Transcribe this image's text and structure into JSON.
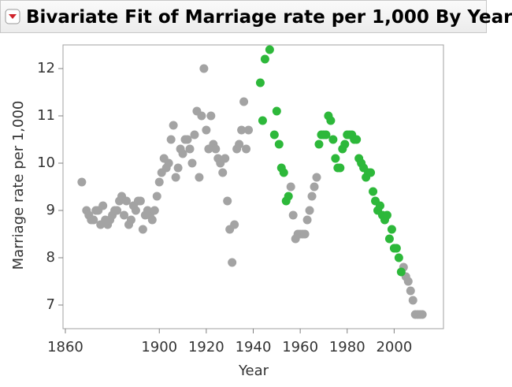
{
  "header": {
    "title": "Bivariate Fit of Marriage rate per 1,000 By Year"
  },
  "chart_data": {
    "type": "scatter",
    "xlabel": "Year",
    "ylabel": "Marriage rate per 1,000",
    "xlim": [
      1859,
      2021
    ],
    "ylim": [
      6.5,
      12.5
    ],
    "xticks": [
      1860,
      1900,
      1920,
      1940,
      1960,
      1980,
      2000
    ],
    "yticks": [
      7,
      8,
      9,
      10,
      11,
      12
    ],
    "series": [
      {
        "color": "#a3a3a3",
        "x": [
          1867,
          1869,
          1870,
          1871,
          1872,
          1873,
          1874,
          1875,
          1876,
          1877,
          1878,
          1879,
          1880,
          1881,
          1882,
          1883,
          1884,
          1885,
          1886,
          1887,
          1888,
          1889,
          1890,
          1891,
          1892,
          1893,
          1894,
          1895,
          1896,
          1897,
          1898,
          1899,
          1900,
          1901,
          1902,
          1903,
          1904,
          1905,
          1906,
          1907,
          1908,
          1909,
          1910,
          1911,
          1912,
          1913,
          1914,
          1915,
          1916,
          1917,
          1918,
          1919,
          1920,
          1921,
          1922,
          1923,
          1924,
          1925,
          1926,
          1927,
          1928,
          1929,
          1930,
          1931,
          1932,
          1933,
          1934,
          1935,
          1936,
          1937,
          1938,
          1956,
          1957,
          1958,
          1959,
          1960,
          1961,
          1962,
          1963,
          1964,
          1965,
          1966,
          1967,
          2004,
          2005,
          2006,
          2007,
          2008,
          2009,
          2010,
          2011,
          2012
        ],
        "values": [
          9.6,
          9.0,
          8.9,
          8.8,
          8.8,
          9.0,
          9.0,
          8.7,
          9.1,
          8.8,
          8.7,
          8.8,
          8.9,
          9.0,
          9.0,
          9.2,
          9.3,
          8.9,
          9.2,
          8.7,
          8.8,
          9.1,
          9.0,
          9.2,
          9.2,
          8.6,
          8.9,
          9.0,
          8.9,
          8.8,
          9.0,
          9.3,
          9.6,
          9.8,
          10.1,
          9.9,
          10.0,
          10.5,
          10.8,
          9.7,
          9.9,
          10.3,
          10.2,
          10.5,
          10.5,
          10.3,
          10.0,
          10.6,
          11.1,
          9.7,
          11.0,
          12.0,
          10.7,
          10.3,
          11.0,
          10.4,
          10.3,
          10.1,
          10.0,
          9.8,
          10.1,
          9.2,
          8.6,
          7.9,
          8.7,
          10.3,
          10.4,
          10.7,
          11.3,
          10.3,
          10.7,
          9.5,
          8.9,
          8.4,
          8.5,
          8.5,
          8.5,
          8.5,
          8.8,
          9.0,
          9.3,
          9.5,
          9.7,
          7.8,
          7.6,
          7.5,
          7.3,
          7.1,
          6.8,
          6.8,
          6.8,
          6.8
        ]
      },
      {
        "color": "#2db83a",
        "x": [
          1943,
          1944,
          1945,
          1947,
          1949,
          1950,
          1951,
          1952,
          1953,
          1954,
          1955,
          1968,
          1969,
          1970,
          1971,
          1972,
          1973,
          1974,
          1975,
          1976,
          1977,
          1978,
          1979,
          1980,
          1981,
          1982,
          1983,
          1984,
          1985,
          1986,
          1987,
          1988,
          1989,
          1990,
          1991,
          1992,
          1993,
          1994,
          1995,
          1996,
          1997,
          1998,
          1999,
          2000,
          2001,
          2002,
          2003
        ],
        "values": [
          11.7,
          10.9,
          12.2,
          12.4,
          10.6,
          11.1,
          10.4,
          9.9,
          9.8,
          9.2,
          9.3,
          10.4,
          10.6,
          10.6,
          10.6,
          11.0,
          10.9,
          10.5,
          10.1,
          9.9,
          9.9,
          10.3,
          10.4,
          10.6,
          10.6,
          10.6,
          10.5,
          10.5,
          10.1,
          10.0,
          9.9,
          9.7,
          9.8,
          9.8,
          9.4,
          9.2,
          9.0,
          9.1,
          8.9,
          8.8,
          8.9,
          8.4,
          8.6,
          8.2,
          8.2,
          8.0,
          7.7
        ]
      }
    ]
  }
}
